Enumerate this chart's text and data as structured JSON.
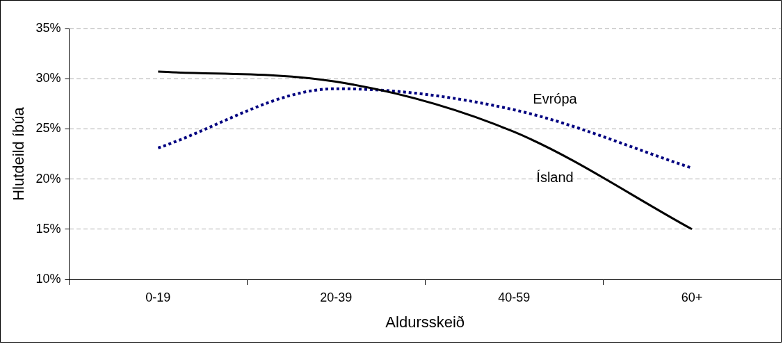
{
  "chart_data": {
    "type": "line",
    "xlabel": "Aldursskeið",
    "ylabel": "Hlutdeild íbúa",
    "categories": [
      "0-19",
      "20-39",
      "40-59",
      "60+"
    ],
    "series": [
      {
        "name": "Ísland",
        "color": "#000000",
        "line_style": "solid",
        "values": [
          30.7,
          29.7,
          24.7,
          15.0
        ]
      },
      {
        "name": "Evrópa",
        "color": "#000080",
        "line_style": "dotted",
        "values": [
          23.1,
          29.0,
          26.9,
          21.1
        ]
      }
    ],
    "ylim": [
      10,
      35
    ],
    "yticks": [
      {
        "value": 10,
        "label": "10%"
      },
      {
        "value": 15,
        "label": "15%"
      },
      {
        "value": 20,
        "label": "20%"
      },
      {
        "value": 25,
        "label": "25%"
      },
      {
        "value": 30,
        "label": "30%"
      },
      {
        "value": 35,
        "label": "35%"
      }
    ],
    "grid": "y",
    "legend": false,
    "marker": "none"
  }
}
